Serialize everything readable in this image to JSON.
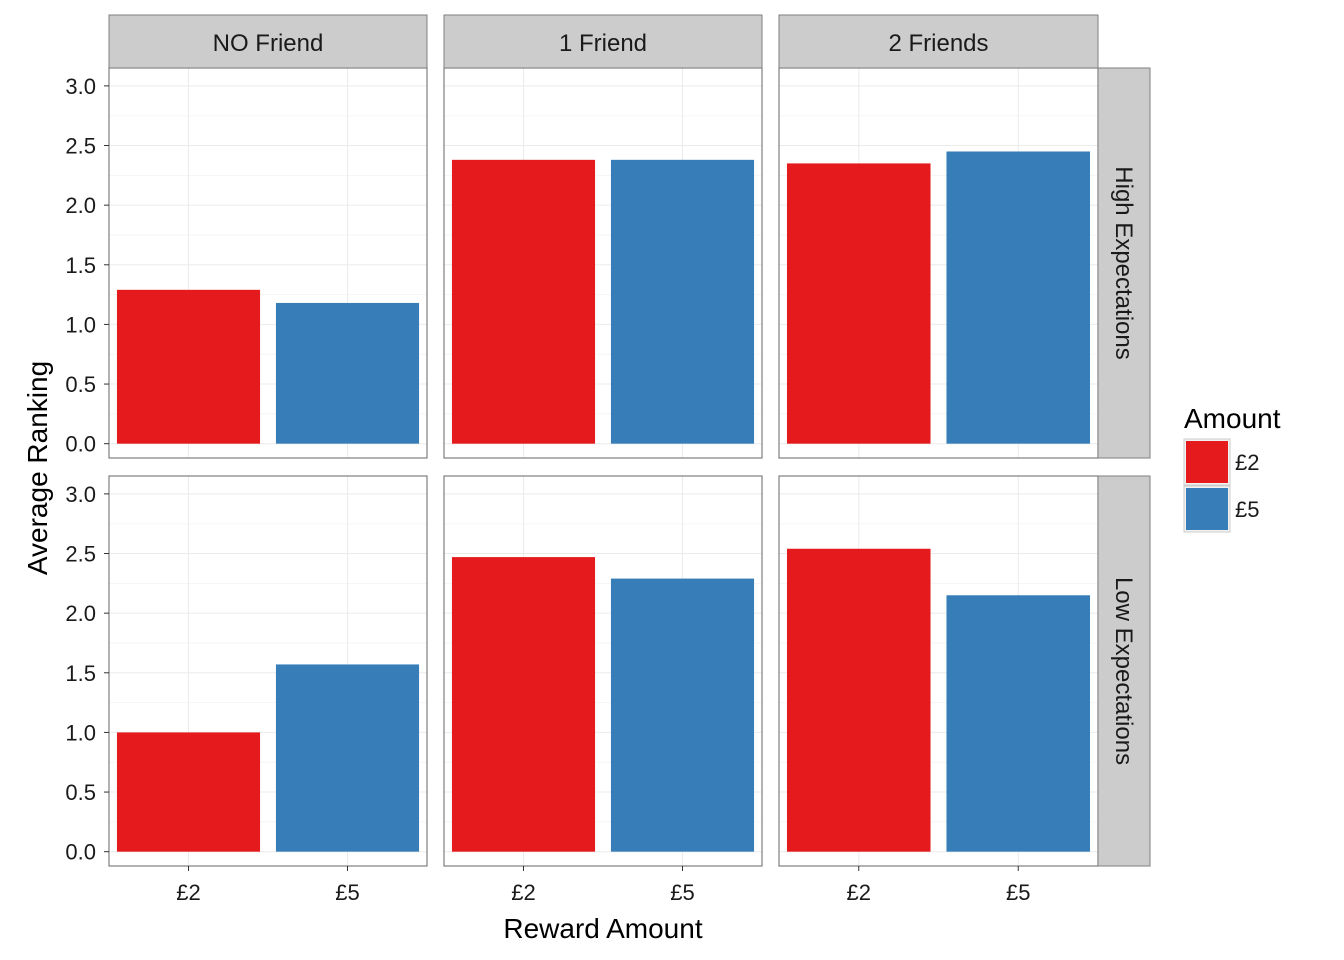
{
  "chart_data": {
    "type": "bar",
    "xlabel": "Reward Amount",
    "ylabel": "Average Ranking",
    "ylim": [
      -0.12,
      3.15
    ],
    "yticks": [
      "0.0",
      "0.5",
      "1.0",
      "1.5",
      "2.0",
      "2.5",
      "3.0"
    ],
    "ytick_values": [
      0,
      0.5,
      1,
      1.5,
      2,
      2.5,
      3
    ],
    "categories": [
      "£2",
      "£5"
    ],
    "columns": [
      "NO Friend",
      "1 Friend",
      "2 Friends"
    ],
    "rows": [
      "High Expectations",
      "Low Expectations"
    ],
    "grid": true,
    "legend": {
      "title": "Amount",
      "position": "right",
      "items": [
        {
          "label": "£2",
          "color": "#e41a1c"
        },
        {
          "label": "£5",
          "color": "#377eb8"
        }
      ]
    },
    "panels": [
      {
        "row": "High Expectations",
        "col": "NO Friend",
        "values": [
          1.29,
          1.18
        ]
      },
      {
        "row": "High Expectations",
        "col": "1 Friend",
        "values": [
          2.38,
          2.38
        ]
      },
      {
        "row": "High Expectations",
        "col": "2 Friends",
        "values": [
          2.35,
          2.45
        ]
      },
      {
        "row": "Low Expectations",
        "col": "NO Friend",
        "values": [
          1.0,
          1.57
        ]
      },
      {
        "row": "Low Expectations",
        "col": "1 Friend",
        "values": [
          2.47,
          2.29
        ]
      },
      {
        "row": "Low Expectations",
        "col": "2 Friends",
        "values": [
          2.54,
          2.15
        ]
      }
    ]
  },
  "colors": {
    "panel_border": "#7f7f7f",
    "strip_fill": "#cccccc",
    "grid_major": "#ebebeb",
    "grid_minor": "#f5f5f5"
  }
}
